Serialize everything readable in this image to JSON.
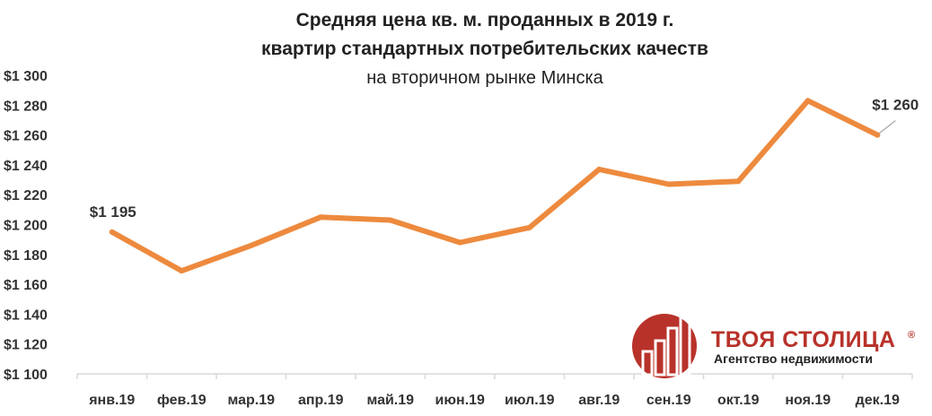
{
  "chart_data": {
    "type": "line",
    "title_lines": [
      "Средняя цена кв. м. проданных в 2019 г.",
      "квартир стандартных потребительских качеств",
      "на вторичном рынке Минска"
    ],
    "categories": [
      "янв.19",
      "фев.19",
      "мар.19",
      "апр.19",
      "май.19",
      "июн.19",
      "июл.19",
      "авг.19",
      "сен.19",
      "окт.19",
      "ноя.19",
      "дек.19"
    ],
    "series": [
      {
        "values": [
          1195,
          1169,
          1186,
          1205,
          1203,
          1188,
          1198,
          1237,
          1227,
          1229,
          1283,
          1260
        ]
      }
    ],
    "ylim": [
      1100,
      1300
    ],
    "ystep": 20,
    "yticks": [
      "$1 100",
      "$1 120",
      "$1 140",
      "$1 160",
      "$1 180",
      "$1 200",
      "$1 220",
      "$1 240",
      "$1 260",
      "$1 280",
      "$1 300"
    ],
    "data_labels": [
      {
        "index": 0,
        "text": "$1 195"
      },
      {
        "index": 11,
        "text": "$1 260"
      }
    ],
    "grid": false,
    "line_color": "#ed8a3e",
    "axis_color": "#d9d9d9"
  },
  "logo": {
    "name": "ТВОЯ СТОЛИЦА",
    "registered_mark": "®",
    "tagline": "Агентство недвижимости",
    "color": "#b8322a"
  }
}
